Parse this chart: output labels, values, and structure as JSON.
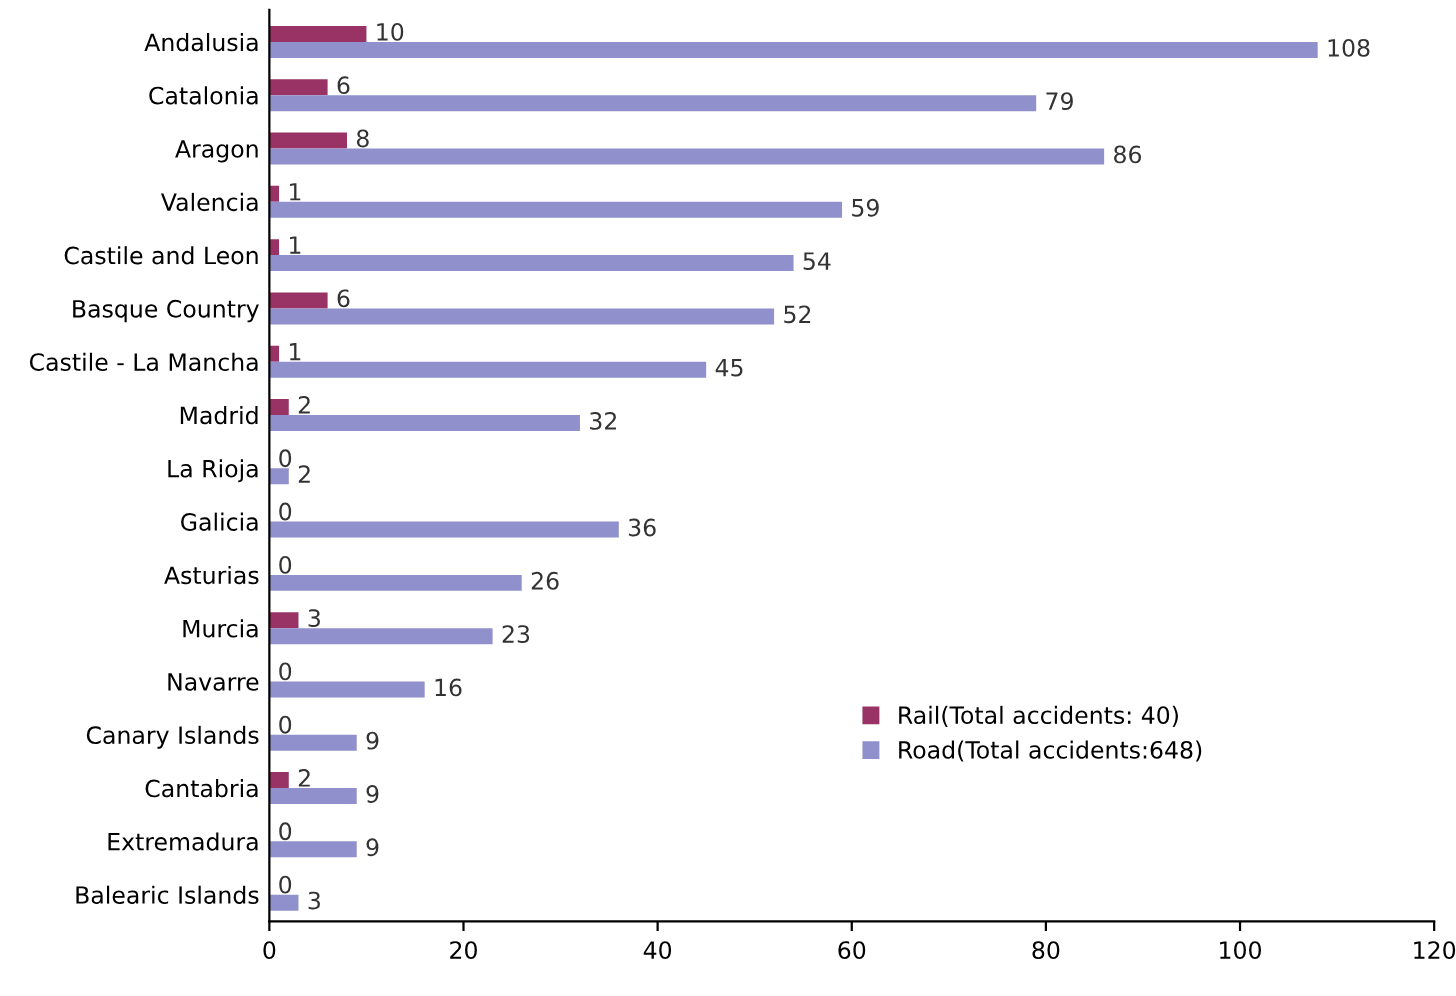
{
  "chart_data": {
    "type": "bar",
    "orientation": "horizontal",
    "categories": [
      "Andalusia",
      "Catalonia",
      "Aragon",
      "Valencia",
      "Castile and Leon",
      "Basque Country",
      "Castile - La Mancha",
      "Madrid",
      "La Rioja",
      "Galicia",
      "Asturias",
      "Murcia",
      "Navarre",
      "Canary Islands",
      "Cantabria",
      "Extremadura",
      "Balearic Islands"
    ],
    "series": [
      {
        "name": "Rail(Total accidents: 40)",
        "color": "#993366",
        "values": [
          10,
          6,
          8,
          1,
          1,
          6,
          1,
          2,
          0,
          0,
          0,
          3,
          0,
          0,
          2,
          0,
          0
        ]
      },
      {
        "name": "Road(Total accidents:648)",
        "color": "#9090cc",
        "values": [
          108,
          79,
          86,
          59,
          54,
          52,
          45,
          32,
          2,
          36,
          26,
          23,
          16,
          9,
          9,
          9,
          3
        ]
      }
    ],
    "xlim": [
      0,
      120
    ],
    "xticks": [
      0,
      20,
      40,
      60,
      80,
      100,
      120
    ],
    "data_labels": true,
    "grid": false,
    "legend": "lower right"
  }
}
